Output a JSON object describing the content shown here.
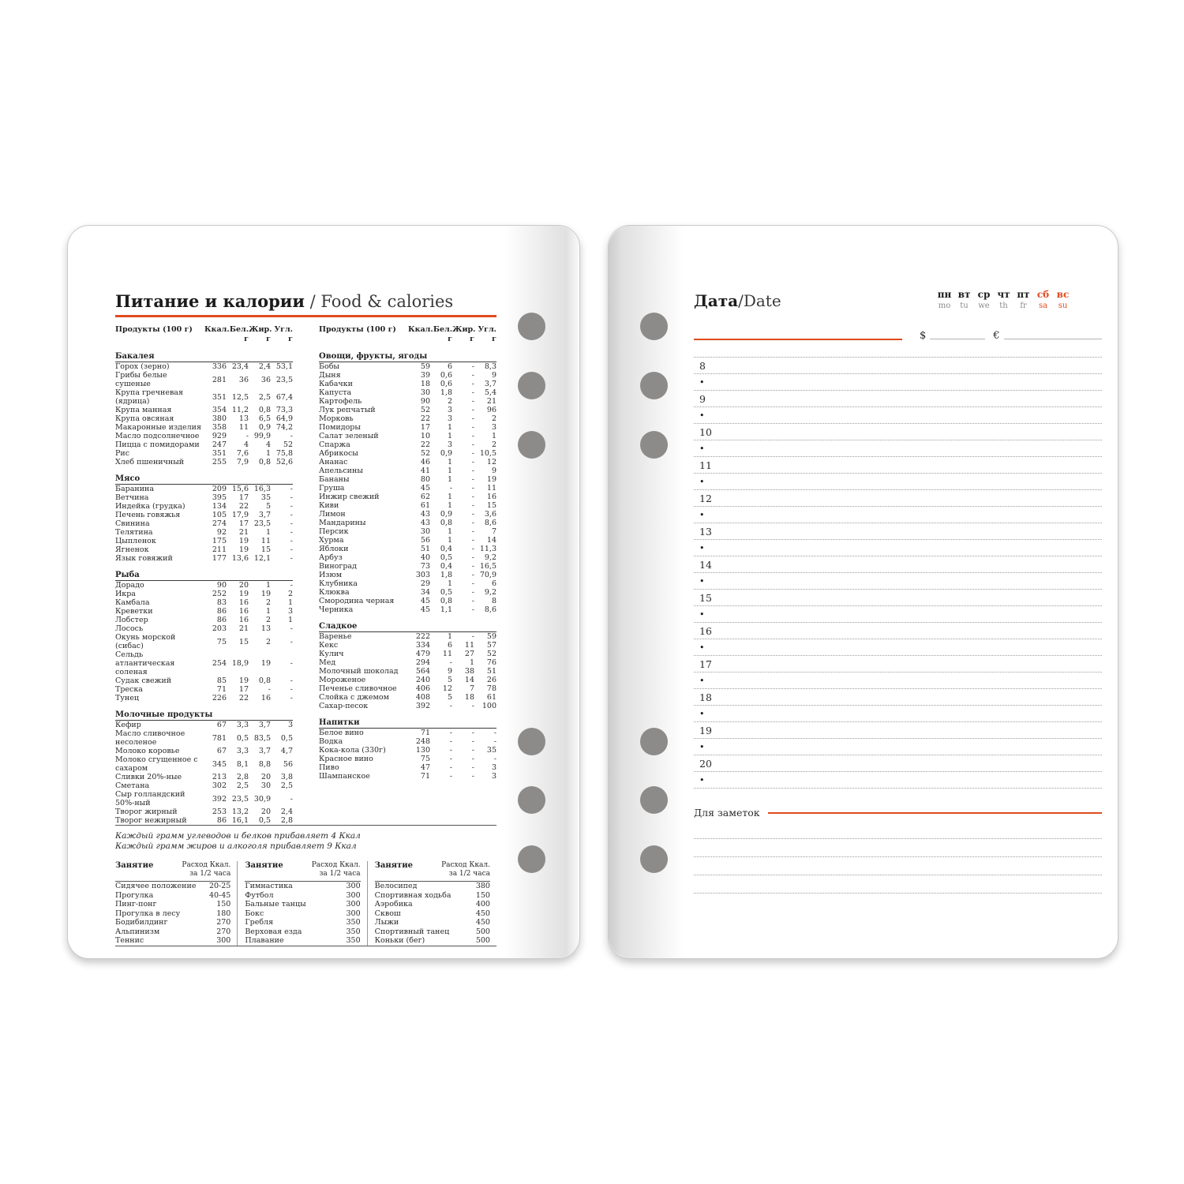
{
  "colors": {
    "accent": "#e04b1e",
    "hole_gray": "#8d8b89"
  },
  "page_left": {
    "title_ru": "Питание и калории",
    "title_en": " / Food & calories",
    "table_header": {
      "product": "Продукты (100 г)",
      "kcal": "Ккал.",
      "protein": "Бел. г",
      "fat": "Жир. г",
      "carb": "Угл. г"
    },
    "columns": [
      {
        "sections": [
          {
            "title": "Бакалея",
            "rows": [
              [
                "Горох (зерно)",
                "336",
                "23,4",
                "2,4",
                "53,1"
              ],
              [
                "Грибы белые сушеные",
                "281",
                "36",
                "36",
                "23,5"
              ],
              [
                "Крупа гречневая (ядрица)",
                "351",
                "12,5",
                "2,5",
                "67,4"
              ],
              [
                "Крупа манная",
                "354",
                "11,2",
                "0,8",
                "73,3"
              ],
              [
                "Крупа овсяная",
                "380",
                "13",
                "6,5",
                "64,9"
              ],
              [
                "Макаронные изделия",
                "358",
                "11",
                "0,9",
                "74,2"
              ],
              [
                "Масло подсолнечное",
                "929",
                "-",
                "99,9",
                "-"
              ],
              [
                "Пицца с помидорами",
                "247",
                "4",
                "4",
                "52"
              ],
              [
                "Рис",
                "351",
                "7,6",
                "1",
                "75,8"
              ],
              [
                "Хлеб пшеничный",
                "255",
                "7,9",
                "0,8",
                "52,6"
              ]
            ]
          },
          {
            "title": "Мясо",
            "rows": [
              [
                "Баранина",
                "209",
                "15,6",
                "16,3",
                "-"
              ],
              [
                "Ветчина",
                "395",
                "17",
                "35",
                "-"
              ],
              [
                "Индейка (грудка)",
                "134",
                "22",
                "5",
                "-"
              ],
              [
                "Печень говяжья",
                "105",
                "17,9",
                "3,7",
                "-"
              ],
              [
                "Свинина",
                "274",
                "17",
                "23,5",
                "-"
              ],
              [
                "Телятина",
                "92",
                "21",
                "1",
                "-"
              ],
              [
                "Цыпленок",
                "175",
                "19",
                "11",
                "-"
              ],
              [
                "Ягненок",
                "211",
                "19",
                "15",
                "-"
              ],
              [
                "Язык говяжий",
                "177",
                "13,6",
                "12,1",
                "-"
              ]
            ]
          },
          {
            "title": "Рыба",
            "rows": [
              [
                "Дорадо",
                "90",
                "20",
                "1",
                "-"
              ],
              [
                "Икра",
                "252",
                "19",
                "19",
                "2"
              ],
              [
                "Камбала",
                "83",
                "16",
                "2",
                "1"
              ],
              [
                "Креветки",
                "86",
                "16",
                "1",
                "3"
              ],
              [
                "Лобстер",
                "86",
                "16",
                "2",
                "1"
              ],
              [
                "Лосось",
                "203",
                "21",
                "13",
                "-"
              ],
              [
                "Окунь морской (сибас)",
                "75",
                "15",
                "2",
                "-"
              ],
              [
                "Сельдь атлантическая соленая",
                "254",
                "18,9",
                "19",
                "-"
              ],
              [
                "Судак свежий",
                "85",
                "19",
                "0,8",
                "-"
              ],
              [
                "Треска",
                "71",
                "17",
                "-",
                "-"
              ],
              [
                "Тунец",
                "226",
                "22",
                "16",
                "-"
              ]
            ]
          },
          {
            "title": "Молочные продукты",
            "rows": [
              [
                "Кефир",
                "67",
                "3,3",
                "3,7",
                "3"
              ],
              [
                "Масло сливочное несоленое",
                "781",
                "0,5",
                "83,5",
                "0,5"
              ],
              [
                "Молоко коровье",
                "67",
                "3,3",
                "3,7",
                "4,7"
              ],
              [
                "Молоко сгущенное с сахаром",
                "345",
                "8,1",
                "8,8",
                "56"
              ],
              [
                "Сливки 20%-ные",
                "213",
                "2,8",
                "20",
                "3,8"
              ],
              [
                "Сметана",
                "302",
                "2,5",
                "30",
                "2,5"
              ],
              [
                "Сыр голландский 50%-ный",
                "392",
                "23,5",
                "30,9",
                "-"
              ],
              [
                "Творог жирный",
                "253",
                "13,2",
                "20",
                "2,4"
              ],
              [
                "Творог нежирный",
                "86",
                "16,1",
                "0,5",
                "2,8"
              ]
            ]
          }
        ]
      },
      {
        "sections": [
          {
            "title": "Овощи, фрукты, ягоды",
            "rows": [
              [
                "Бобы",
                "59",
                "6",
                "-",
                "8,3"
              ],
              [
                "Дыня",
                "39",
                "0,6",
                "-",
                "9"
              ],
              [
                "Кабачки",
                "18",
                "0,6",
                "-",
                "3,7"
              ],
              [
                "Капуста",
                "30",
                "1,8",
                "-",
                "5,4"
              ],
              [
                "Картофель",
                "90",
                "2",
                "-",
                "21"
              ],
              [
                "Лук репчатый",
                "52",
                "3",
                "-",
                "96"
              ],
              [
                "Морковь",
                "22",
                "3",
                "-",
                "2"
              ],
              [
                "Помидоры",
                "17",
                "1",
                "-",
                "3"
              ],
              [
                "Салат зеленый",
                "10",
                "1",
                "-",
                "1"
              ],
              [
                "Спаржа",
                "22",
                "3",
                "-",
                "2"
              ],
              [
                "Абрикосы",
                "52",
                "0,9",
                "-",
                "10,5"
              ],
              [
                "Ананас",
                "46",
                "1",
                "-",
                "12"
              ],
              [
                "Апельсины",
                "41",
                "1",
                "-",
                "9"
              ],
              [
                "Бананы",
                "80",
                "1",
                "-",
                "19"
              ],
              [
                "Груша",
                "45",
                "-",
                "-",
                "11"
              ],
              [
                "Инжир свежий",
                "62",
                "1",
                "-",
                "16"
              ],
              [
                "Киви",
                "61",
                "1",
                "-",
                "15"
              ],
              [
                "Лимон",
                "43",
                "0,9",
                "-",
                "3,6"
              ],
              [
                "Мандарины",
                "43",
                "0,8",
                "-",
                "8,6"
              ],
              [
                "Персик",
                "30",
                "1",
                "-",
                "7"
              ],
              [
                "Хурма",
                "56",
                "1",
                "-",
                "14"
              ],
              [
                "Яблоки",
                "51",
                "0,4",
                "-",
                "11,3"
              ],
              [
                "Арбуз",
                "40",
                "0,5",
                "-",
                "9,2"
              ],
              [
                "Виноград",
                "73",
                "0,4",
                "-",
                "16,5"
              ],
              [
                "Изюм",
                "303",
                "1,8",
                "-",
                "70,9"
              ],
              [
                "Клубника",
                "29",
                "1",
                "-",
                "6"
              ],
              [
                "Клюква",
                "34",
                "0,5",
                "-",
                "9,2"
              ],
              [
                "Смородина черная",
                "45",
                "0,8",
                "-",
                "8"
              ],
              [
                "Черника",
                "45",
                "1,1",
                "-",
                "8,6"
              ]
            ]
          },
          {
            "title": "Сладкое",
            "rows": [
              [
                "Варенье",
                "222",
                "1",
                "-",
                "59"
              ],
              [
                "Кекс",
                "334",
                "6",
                "11",
                "57"
              ],
              [
                "Кулич",
                "479",
                "11",
                "27",
                "52"
              ],
              [
                "Мед",
                "294",
                "-",
                "1",
                "76"
              ],
              [
                "Молочный шоколад",
                "564",
                "9",
                "38",
                "51"
              ],
              [
                "Мороженое",
                "240",
                "5",
                "14",
                "26"
              ],
              [
                "Печенье сливочное",
                "406",
                "12",
                "7",
                "78"
              ],
              [
                "Слойка с джемом",
                "408",
                "5",
                "18",
                "61"
              ],
              [
                "Сахар-песок",
                "392",
                "-",
                "-",
                "100"
              ]
            ]
          },
          {
            "title": "Напитки",
            "rows": [
              [
                "Белое вино",
                "71",
                "-",
                "-",
                "-"
              ],
              [
                "Водка",
                "248",
                "-",
                "-",
                "-"
              ],
              [
                "Кока-кола (330г)",
                "130",
                "-",
                "-",
                "35"
              ],
              [
                "Красное вино",
                "75",
                "-",
                "-",
                "-"
              ],
              [
                "Пиво",
                "47",
                "-",
                "-",
                "3"
              ],
              [
                "Шампанское",
                "71",
                "-",
                "-",
                "3"
              ]
            ]
          }
        ]
      }
    ],
    "footnotes": [
      "Каждый грамм углеводов и белков прибавляет 4 Ккал",
      "Каждый грамм жиров и алкоголя прибавляет 9 Ккал"
    ],
    "activities": {
      "header_name": "Занятие",
      "header_value": "Расход Ккал.\nза 1/2 часа",
      "columns": [
        {
          "rows": [
            [
              "Сидячее положение",
              "20-25"
            ],
            [
              "Прогулка",
              "40-45"
            ],
            [
              "Пинг-понг",
              "150"
            ],
            [
              "Прогулка в лесу",
              "180"
            ],
            [
              "Бодибилдинг",
              "270"
            ],
            [
              "Альпинизм",
              "270"
            ],
            [
              "Теннис",
              "300"
            ]
          ]
        },
        {
          "rows": [
            [
              "Гимнастика",
              "300"
            ],
            [
              "Футбол",
              "300"
            ],
            [
              "Бальные танцы",
              "300"
            ],
            [
              "Бокс",
              "300"
            ],
            [
              "Гребля",
              "350"
            ],
            [
              "Верховая езда",
              "350"
            ],
            [
              "Плавание",
              "350"
            ]
          ]
        },
        {
          "rows": [
            [
              "Велосипед",
              "380"
            ],
            [
              "Спортивная ходьба",
              "150"
            ],
            [
              "Аэробика",
              "400"
            ],
            [
              "Сквош",
              "450"
            ],
            [
              "Лыжи",
              "450"
            ],
            [
              "Спортивный танец",
              "500"
            ],
            [
              "Коньки (бег)",
              "500"
            ]
          ]
        }
      ]
    }
  },
  "page_right": {
    "title_ru": "Дата",
    "title_en": "/Date",
    "weekdays": [
      {
        "ru": "пн",
        "en": "mo",
        "weekend": false
      },
      {
        "ru": "вт",
        "en": "tu",
        "weekend": false
      },
      {
        "ru": "ср",
        "en": "we",
        "weekend": false
      },
      {
        "ru": "чт",
        "en": "th",
        "weekend": false
      },
      {
        "ru": "пт",
        "en": "fr",
        "weekend": false
      },
      {
        "ru": "сб",
        "en": "sa",
        "weekend": true
      },
      {
        "ru": "вс",
        "en": "su",
        "weekend": true
      }
    ],
    "currency": {
      "dollar": "$",
      "euro": "€"
    },
    "hours": [
      "8",
      "9",
      "10",
      "11",
      "12",
      "13",
      "14",
      "15",
      "16",
      "17",
      "18",
      "19",
      "20"
    ],
    "bullet": "•",
    "notes_label": "Для заметок",
    "notes_lines": 4
  }
}
